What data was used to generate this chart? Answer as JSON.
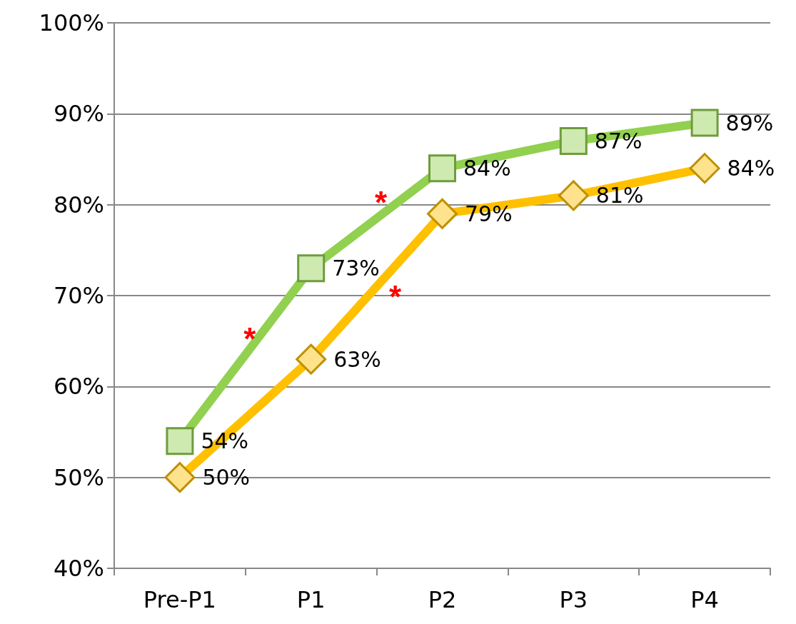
{
  "chart_data": {
    "type": "line",
    "categories": [
      "Pre-P1",
      "P1",
      "P2",
      "P3",
      "P4"
    ],
    "series": [
      {
        "color": "#92d050",
        "marker": "square",
        "values": [
          54,
          73,
          84,
          87,
          89
        ],
        "value_labels": [
          "54%",
          "73%",
          "84%",
          "87%",
          "89%"
        ]
      },
      {
        "color": "#ffc000",
        "marker": "diamond",
        "values": [
          50,
          63,
          79,
          81,
          84
        ],
        "value_labels": [
          "50%",
          "63%",
          "79%",
          "81%",
          "84%"
        ]
      }
    ],
    "ylim": [
      40,
      100
    ],
    "yticks": [
      {
        "value": 40,
        "label": "40%"
      },
      {
        "value": 50,
        "label": "50%"
      },
      {
        "value": 60,
        "label": "60%"
      },
      {
        "value": 70,
        "label": "70%"
      },
      {
        "value": 80,
        "label": "80%"
      },
      {
        "value": 90,
        "label": "90%"
      },
      {
        "value": 100,
        "label": "100%"
      }
    ],
    "grid": "y",
    "annotations": [
      "*",
      "*",
      "*"
    ]
  }
}
